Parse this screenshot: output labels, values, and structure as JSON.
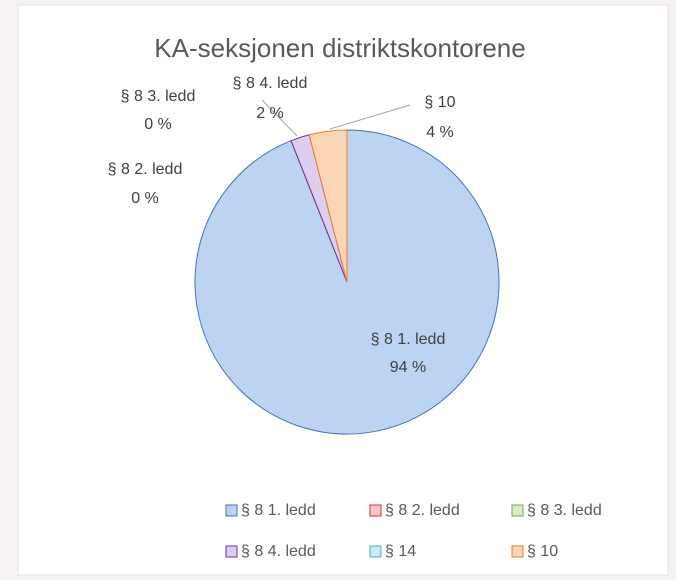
{
  "chart_data": {
    "type": "pie",
    "title": "KA-seksjonen distriktskontorene",
    "categories": [
      "§ 8  1. ledd",
      "§ 8  2. ledd",
      "§ 8  3. ledd",
      "§ 8  4. ledd",
      "§ 14",
      "§ 10"
    ],
    "values": [
      94,
      0,
      0,
      2,
      0,
      4
    ],
    "value_labels": [
      "94 %",
      "0 %",
      "0 %",
      "2 %",
      null,
      "4 %"
    ],
    "colors": [
      "#4472c4",
      "#e03030",
      "#70ad47",
      "#7030a0",
      "#4bacc6",
      "#ed7d31"
    ],
    "fills": [
      "#bcd3f2",
      "#f7c6c6",
      "#d8edc8",
      "#ddcdef",
      "#c9eaf3",
      "#fbd5b5"
    ],
    "legend": "bottom"
  }
}
